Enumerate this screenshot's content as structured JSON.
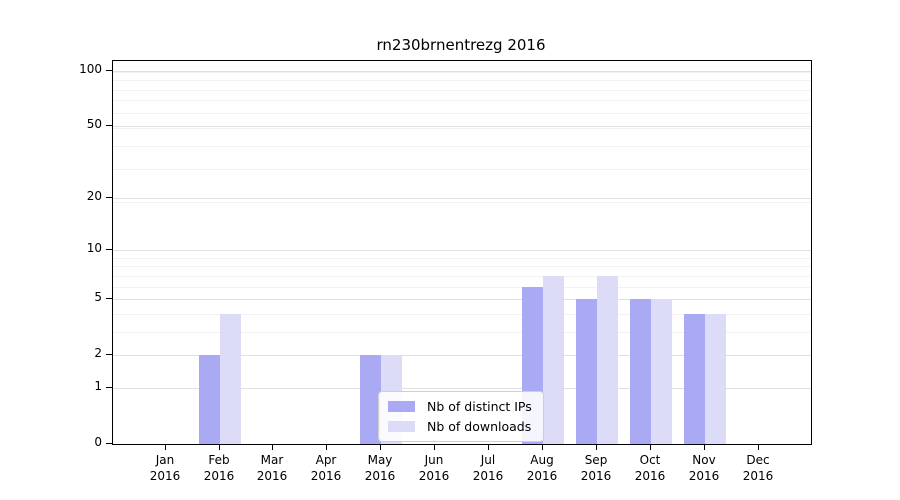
{
  "title": "rn230brnentrezg 2016",
  "chart_data": {
    "type": "bar",
    "title": "rn230brnentrezg 2016",
    "categories": [
      "Jan",
      "Feb",
      "Mar",
      "Apr",
      "May",
      "Jun",
      "Jul",
      "Aug",
      "Sep",
      "Oct",
      "Nov",
      "Dec"
    ],
    "year": "2016",
    "series": [
      {
        "name": "Nb of distinct IPs",
        "color": "#a9a9f4",
        "values": [
          0,
          2,
          0,
          0,
          2,
          0,
          0,
          6,
          5,
          5,
          4,
          0
        ]
      },
      {
        "name": "Nb of downloads",
        "color": "#dcdcf8",
        "values": [
          0,
          4,
          0,
          0,
          2,
          0,
          0,
          7,
          7,
          5,
          4,
          0
        ]
      }
    ],
    "yticks": [
      0,
      1,
      2,
      5,
      10,
      20,
      50,
      100
    ],
    "scale": "log10(1+value)",
    "ylim": [
      0,
      113
    ],
    "xlabel": "",
    "ylabel": "",
    "grid": true,
    "legend_position": "lower center"
  },
  "colors": {
    "bar_dark": "#a9a9f4",
    "bar_light": "#dcdcf8",
    "grid_major": "#e0e0e0",
    "grid_minor": "#f2f2f2",
    "spine": "#000000",
    "background": "#ffffff"
  }
}
